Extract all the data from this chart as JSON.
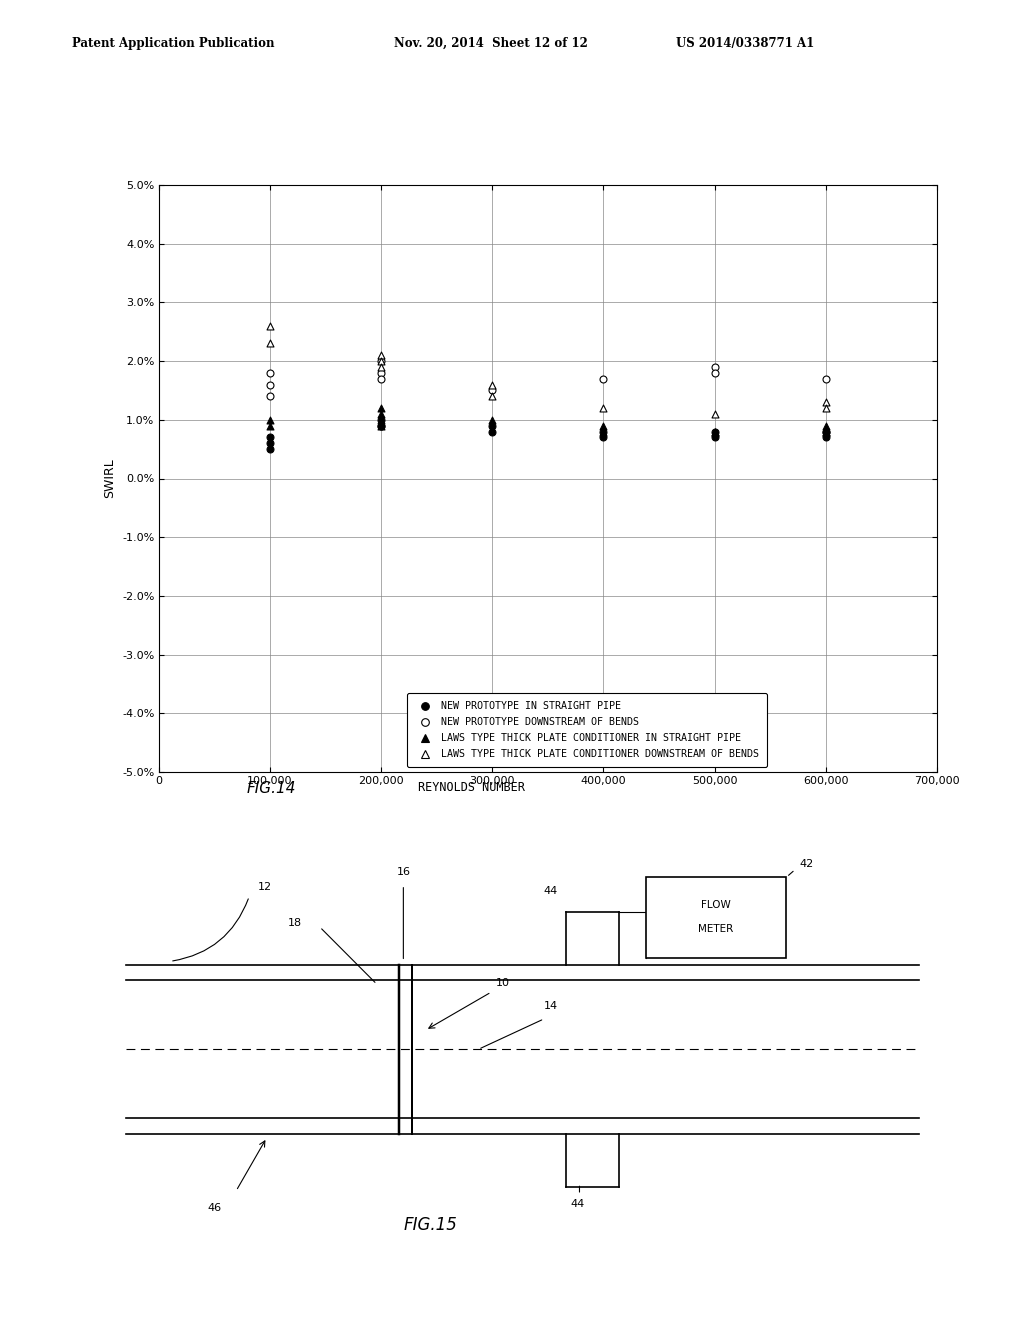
{
  "header_left": "Patent Application Publication",
  "header_mid": "Nov. 20, 2014  Sheet 12 of 12",
  "header_right": "US 2014/0338771 A1",
  "fig14_caption": "FIG.14",
  "fig14_xlabel": "REYNOLDS NUMBER",
  "fig14_ylabel": "SWIRL",
  "fig14_ylim": [
    -0.05,
    0.05
  ],
  "fig14_xlim": [
    0,
    700000
  ],
  "fig14_xticks": [
    0,
    100000,
    200000,
    300000,
    400000,
    500000,
    600000,
    700000
  ],
  "fig14_yticks": [
    -0.05,
    -0.04,
    -0.03,
    -0.02,
    -0.01,
    0.0,
    0.01,
    0.02,
    0.03,
    0.04,
    0.05
  ],
  "series": [
    {
      "label": "NEW PROTOTYPE IN STRAIGHT PIPE",
      "marker": "o",
      "filled": true,
      "x": [
        100000,
        100000,
        100000,
        200000,
        200000,
        200000,
        300000,
        300000,
        400000,
        400000,
        500000,
        500000,
        600000,
        600000,
        600000
      ],
      "y": [
        0.007,
        0.006,
        0.005,
        0.01,
        0.009,
        0.009,
        0.009,
        0.008,
        0.008,
        0.007,
        0.008,
        0.007,
        0.008,
        0.008,
        0.007
      ]
    },
    {
      "label": "NEW PROTOTYPE DOWNSTREAM OF BENDS",
      "marker": "o",
      "filled": false,
      "x": [
        100000,
        100000,
        100000,
        200000,
        200000,
        200000,
        300000,
        400000,
        500000,
        500000,
        600000
      ],
      "y": [
        0.018,
        0.016,
        0.014,
        0.02,
        0.018,
        0.017,
        0.015,
        0.017,
        0.019,
        0.018,
        0.017
      ]
    },
    {
      "label": "LAWS TYPE THICK PLATE CONDITIONER IN STRAIGHT PIPE",
      "marker": "^",
      "filled": true,
      "x": [
        100000,
        100000,
        200000,
        200000,
        200000,
        200000,
        300000,
        400000,
        400000,
        500000,
        500000,
        600000,
        600000,
        600000
      ],
      "y": [
        0.01,
        0.009,
        0.012,
        0.011,
        0.01,
        0.009,
        0.01,
        0.009,
        0.008,
        0.008,
        0.008,
        0.009,
        0.008,
        0.008
      ]
    },
    {
      "label": "LAWS TYPE THICK PLATE CONDITIONER DOWNSTREAM OF BENDS",
      "marker": "^",
      "filled": false,
      "x": [
        100000,
        100000,
        200000,
        200000,
        200000,
        300000,
        300000,
        400000,
        500000,
        600000,
        600000
      ],
      "y": [
        0.026,
        0.023,
        0.021,
        0.02,
        0.019,
        0.016,
        0.014,
        0.012,
        0.011,
        0.013,
        0.012
      ]
    }
  ],
  "fig15_caption": "FIG.15",
  "background_color": "#ffffff"
}
